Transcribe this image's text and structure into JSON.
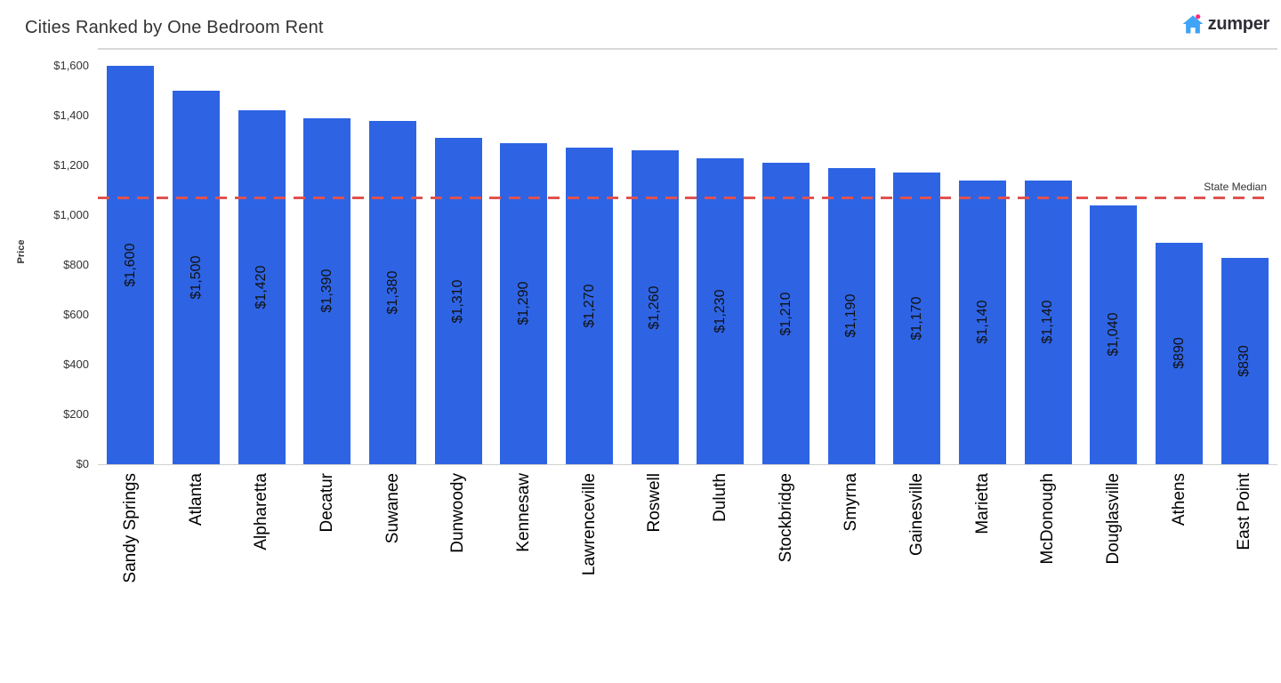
{
  "header": {
    "logo": {
      "text": "zumper",
      "house_color": "#3FA3F6",
      "dot_color": "#FF2E7E",
      "text_color": "#2E2E38"
    }
  },
  "chart_data": {
    "type": "bar",
    "title": "Cities Ranked by One Bedroom Rent",
    "xlabel": "",
    "ylabel": "Price",
    "ylim": [
      0,
      1600
    ],
    "grid": false,
    "legend": "none",
    "bar_color": "#2E64E4",
    "value_label_color": "#111111",
    "axis_text_color": "#333333",
    "categories": [
      "Sandy Springs",
      "Atlanta",
      "Alpharetta",
      "Decatur",
      "Suwanee",
      "Dunwoody",
      "Kennesaw",
      "Lawrenceville",
      "Roswell",
      "Duluth",
      "Stockbridge",
      "Smyrna",
      "Gainesville",
      "Marietta",
      "McDonough",
      "Douglasville",
      "Athens",
      "East Point"
    ],
    "values": [
      1600,
      1500,
      1420,
      1390,
      1380,
      1310,
      1290,
      1270,
      1260,
      1230,
      1210,
      1190,
      1170,
      1140,
      1140,
      1040,
      890,
      830
    ],
    "value_labels": [
      "$1,600",
      "$1,500",
      "$1,420",
      "$1,390",
      "$1,380",
      "$1,310",
      "$1,290",
      "$1,270",
      "$1,260",
      "$1,230",
      "$1,210",
      "$1,190",
      "$1,170",
      "$1,140",
      "$1,140",
      "$1,040",
      "$890",
      "$830"
    ],
    "ytick_values": [
      0,
      200,
      400,
      600,
      800,
      1000,
      1200,
      1400,
      1600
    ],
    "ytick_labels": [
      "$0",
      "$200",
      "$400",
      "$600",
      "$800",
      "$1,000",
      "$1,200",
      "$1,400",
      "$1,600"
    ],
    "reference_line": {
      "label": "State Median",
      "value": 1070,
      "color": "#E0524F",
      "style": "dashed"
    }
  }
}
